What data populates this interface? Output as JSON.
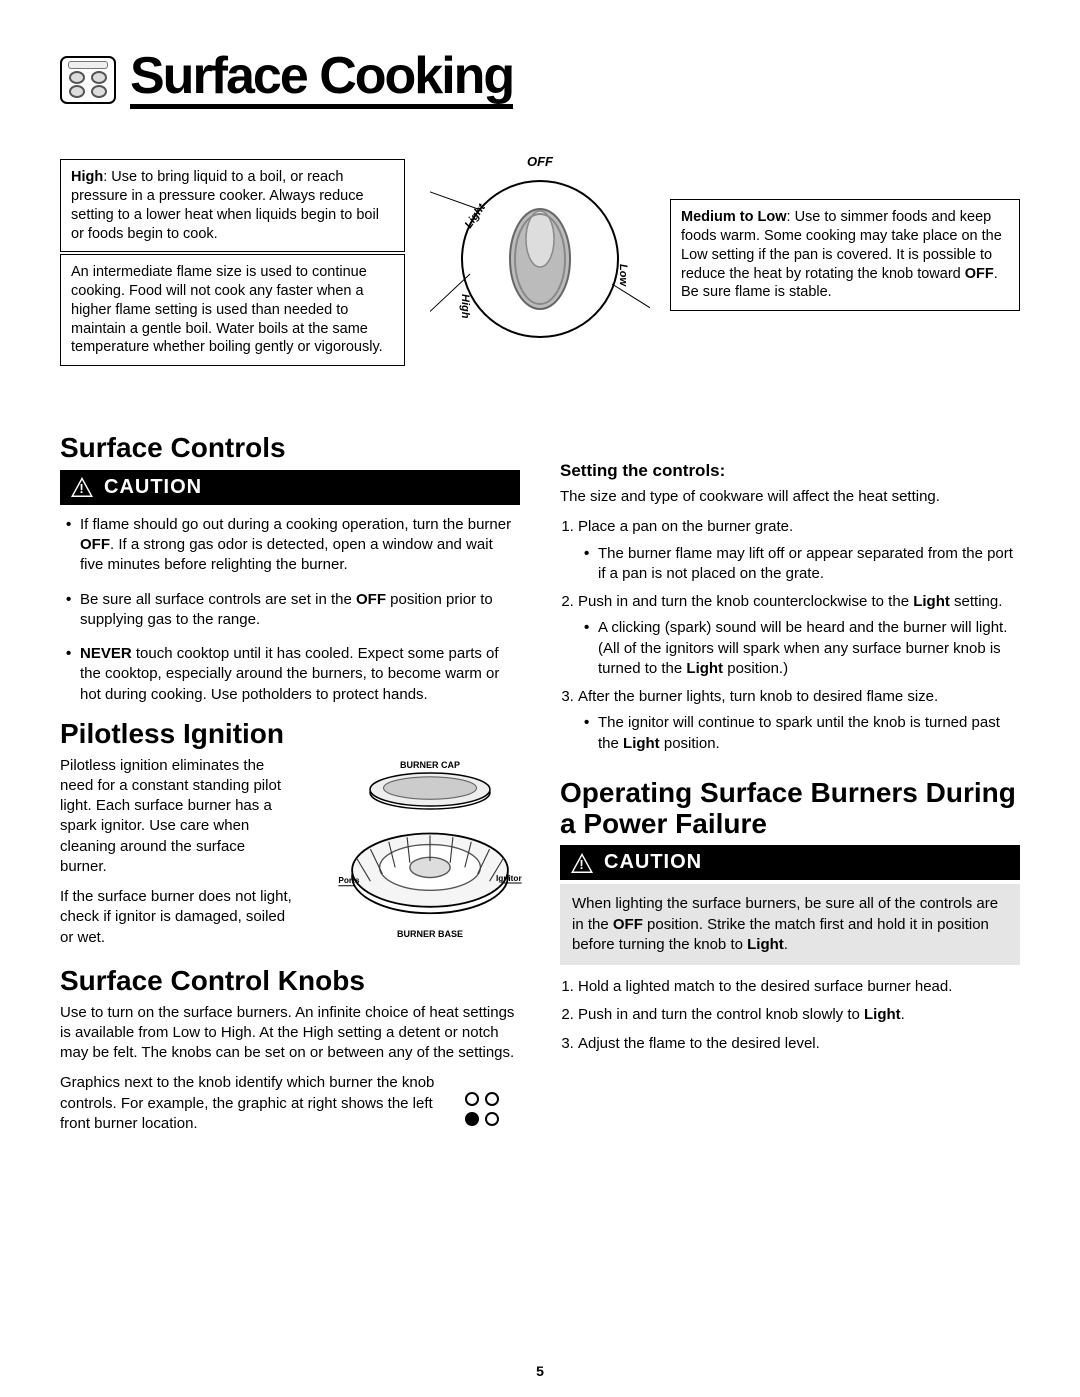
{
  "pageTitle": "Surface Cooking",
  "pageNumber": "5",
  "highBox": {
    "label": "High",
    "text": ": Use to bring liquid to a boil, or reach pressure in a pressure cooker. Always reduce setting to a lower heat when liquids begin to boil or foods begin to cook."
  },
  "midBox": "An intermediate flame size is used to continue cooking. Food will not cook any faster when a higher flame setting is used than needed to maintain a gentle boil. Water boils at the same temperature whether boiling gently or vigorously.",
  "lowBox": {
    "label": "Medium to Low",
    "text": ": Use to simmer foods and keep foods warm. Some cooking may take place on the Low setting if the pan is covered. It is possible to reduce the heat by rotating the knob toward ",
    "off": "OFF",
    "text2": ". Be sure flame is stable."
  },
  "knobLabels": {
    "off": "OFF",
    "light": "Light",
    "high": "High",
    "low": "Low"
  },
  "surfaceControls": {
    "heading": "Surface Controls",
    "caution": "CAUTION",
    "bullets": [
      {
        "pre": "If flame should go out during a cooking operation, turn the burner ",
        "b": "OFF",
        "post": ". If a strong gas odor is detected, open a window and wait five minutes before relighting the burner."
      },
      {
        "pre": "Be sure all surface controls are set in the ",
        "b": "OFF",
        "post": " position prior to supplying gas to the range."
      },
      {
        "b": "NEVER",
        "post": " touch cooktop until it has cooled. Expect some parts of the cooktop, especially around the burners, to become warm or hot during cooking. Use potholders to protect hands."
      }
    ]
  },
  "pilotless": {
    "heading": "Pilotless Ignition",
    "p1": "Pilotless ignition eliminates the need for a constant standing pilot light. Each surface burner has a spark ignitor. Use care when cleaning around the surface burner.",
    "p2": "If the surface burner does not light, check if ignitor is damaged, soiled or wet.",
    "capLabel": "BURNER CAP",
    "baseLabel": "BURNER BASE",
    "portsLabel": "Ports",
    "ignitorLabel": "Ignitor"
  },
  "knobs": {
    "heading": "Surface Control Knobs",
    "p1": "Use to turn on the surface burners.  An infinite choice of heat settings is available from Low to High. At the High setting a detent or notch may be felt. The knobs can be set on or between any of the settings.",
    "p2": "Graphics next to the knob identify which burner the knob controls. For example, the graphic at right shows the left front burner location."
  },
  "setting": {
    "heading": "Setting the controls:",
    "intro": "The size and type of cookware will affect the heat setting.",
    "steps": [
      {
        "text": "Place a pan on the burner grate.",
        "sub": [
          "The burner flame may lift off or appear separated from the port if a pan is not placed on the grate."
        ]
      },
      {
        "text": "Push in and turn the knob counterclockwise to the ",
        "b": "Light",
        "text2": " setting.",
        "sub": [
          "A clicking (spark) sound will be heard and the burner will light.  (All of the ignitors will spark when any surface burner knob is turned to the <b>Light</b> position.)"
        ]
      },
      {
        "text": "After the burner lights, turn knob to desired flame size.",
        "sub": [
          "The ignitor will continue to spark until the knob is turned past the <b>Light</b> position."
        ]
      }
    ]
  },
  "powerFailure": {
    "heading": "Operating Surface Burners During a Power Failure",
    "caution": "CAUTION",
    "gray": {
      "pre": "When lighting the surface burners, be sure all of the controls are in the ",
      "b1": "OFF",
      "mid": " position.  Strike the match first and hold it in position before turning the knob to ",
      "b2": "Light",
      "post": "."
    },
    "steps": [
      "Hold a lighted match to the desired surface burner head.",
      {
        "pre": "Push in and turn the control knob slowly to ",
        "b": "Light",
        "post": "."
      },
      "Adjust the flame to the desired level."
    ]
  }
}
